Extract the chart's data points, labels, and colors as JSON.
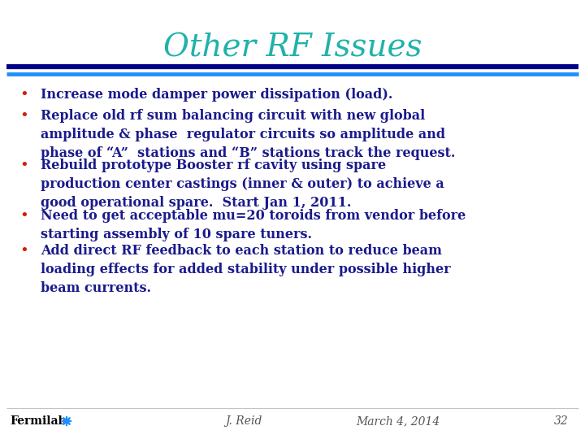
{
  "title": "Other RF Issues",
  "title_color": "#20B2AA",
  "title_fontsize": 28,
  "bg_color": "#FFFFFF",
  "bar1_color": "#00008B",
  "bar2_color": "#1E90FF",
  "bullet_color": "#CC2200",
  "text_color": "#1A1A8C",
  "bullets": [
    "Increase mode damper power dissipation (load).",
    "Replace old rf sum balancing circuit with new global\namplitude & phase  regulator circuits so amplitude and\nphase of “A”  stations and “B” stations track the request.",
    "Rebuild prototype Booster rf cavity using spare\nproduction center castings (inner & outer) to achieve a\ngood operational spare.  Start Jan 1, 2011.",
    "Need to get acceptable mu=20 toroids from vendor before\nstarting assembly of 10 spare tuners.",
    "Add direct RF feedback to each station to reduce beam\nloading effects for added stability under possible higher\nbeam currents."
  ],
  "bullet_line_counts": [
    1,
    3,
    3,
    2,
    3
  ],
  "footer_left": "Fermilab",
  "footer_center": "J. Reid",
  "footer_right_date": "March 4, 2014",
  "footer_right_num": "32",
  "font_family": "serif",
  "text_fontsize": 11.5,
  "bullet_fontsize": 13
}
